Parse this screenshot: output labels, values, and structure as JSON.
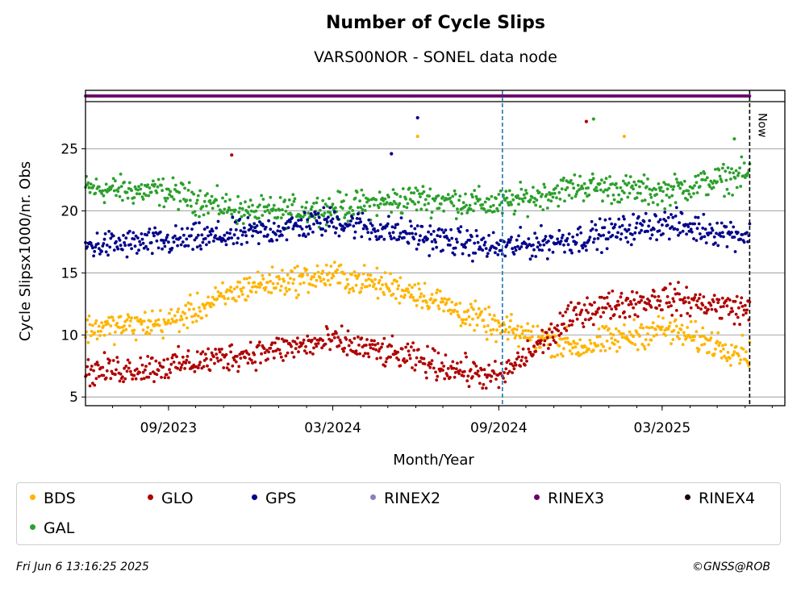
{
  "title": "Number of Cycle Slips",
  "subtitle": "VARS00NOR - SONEL data node",
  "footer": {
    "timestamp": "Fri Jun  6 13:16:25 2025",
    "copyright": "©GNSS@ROB"
  },
  "chart_data": {
    "type": "scatter",
    "xlabel": "Month/Year",
    "ylabel": "Cycle Slipsx1000/nr. Obs",
    "x_range": [
      "2023-06-01",
      "2025-07-15"
    ],
    "ylim": [
      4.3,
      28.8
    ],
    "yticks": [
      5,
      10,
      15,
      20,
      25
    ],
    "xticks": [
      {
        "date": "2023-09-01",
        "label": "09/2023"
      },
      {
        "date": "2024-03-01",
        "label": "03/2024"
      },
      {
        "date": "2024-09-01",
        "label": "09/2024"
      },
      {
        "date": "2025-03-01",
        "label": "03/2025"
      }
    ],
    "grid": "horizontal",
    "vertical_markers": [
      {
        "date": "2024-09-05",
        "style": "dashed",
        "color": "#1f77b4",
        "label": ""
      },
      {
        "date": "2025-06-06",
        "style": "dashed",
        "color": "#000000",
        "label": "Now"
      }
    ],
    "legend": {
      "placement": "bottom",
      "entries": [
        {
          "name": "BDS",
          "color": "#ffb400"
        },
        {
          "name": "GLO",
          "color": "#b00000"
        },
        {
          "name": "GPS",
          "color": "#00008b"
        },
        {
          "name": "RINEX2",
          "color": "#8c7fc0"
        },
        {
          "name": "RINEX3",
          "color": "#6a006a"
        },
        {
          "name": "RINEX4",
          "color": "#1a0010"
        },
        {
          "name": "GAL",
          "color": "#2ca02c"
        }
      ]
    },
    "rinex_band": {
      "series": "RINEX3",
      "from": "2023-06-01",
      "to": "2025-06-06"
    },
    "series": [
      {
        "name": "GAL",
        "color": "#2ca02c",
        "trend": [
          [
            "2023-06-01",
            21.8
          ],
          [
            "2023-09-01",
            21.5
          ],
          [
            "2023-12-01",
            19.8
          ],
          [
            "2024-03-01",
            20.2
          ],
          [
            "2024-06-01",
            21.0
          ],
          [
            "2024-09-01",
            20.5
          ],
          [
            "2024-12-01",
            22.0
          ],
          [
            "2025-03-01",
            21.5
          ],
          [
            "2025-06-06",
            23.0
          ]
        ]
      },
      {
        "name": "GPS",
        "color": "#00008b",
        "trend": [
          [
            "2023-06-01",
            17.2
          ],
          [
            "2023-09-01",
            17.5
          ],
          [
            "2023-12-01",
            18.2
          ],
          [
            "2024-03-01",
            19.2
          ],
          [
            "2024-06-01",
            18.0
          ],
          [
            "2024-09-01",
            17.0
          ],
          [
            "2024-12-01",
            17.8
          ],
          [
            "2025-03-01",
            19.0
          ],
          [
            "2025-06-06",
            18.0
          ]
        ]
      },
      {
        "name": "BDS",
        "color": "#ffb400",
        "trend": [
          [
            "2023-06-01",
            10.5
          ],
          [
            "2023-09-01",
            11.0
          ],
          [
            "2023-12-01",
            14.0
          ],
          [
            "2024-03-01",
            14.8
          ],
          [
            "2024-06-01",
            13.5
          ],
          [
            "2024-09-01",
            10.5
          ],
          [
            "2024-12-01",
            9.0
          ],
          [
            "2025-03-01",
            10.5
          ],
          [
            "2025-06-06",
            8.5
          ]
        ]
      },
      {
        "name": "GLO",
        "color": "#b00000",
        "trend": [
          [
            "2023-06-01",
            7.0
          ],
          [
            "2023-09-01",
            7.5
          ],
          [
            "2023-12-01",
            8.5
          ],
          [
            "2024-03-01",
            9.5
          ],
          [
            "2024-06-01",
            8.0
          ],
          [
            "2024-09-01",
            6.5
          ],
          [
            "2024-12-01",
            12.0
          ],
          [
            "2025-03-01",
            13.0
          ],
          [
            "2025-06-06",
            12.0
          ]
        ]
      }
    ],
    "outliers": [
      {
        "series": "GPS",
        "date": "2024-06-03",
        "y": 27.5
      },
      {
        "series": "BDS",
        "date": "2024-06-03",
        "y": 26.0
      },
      {
        "series": "GLO",
        "date": "2024-12-07",
        "y": 27.2
      },
      {
        "series": "GAL",
        "date": "2024-12-15",
        "y": 27.4
      },
      {
        "series": "BDS",
        "date": "2025-01-18",
        "y": 26.0
      },
      {
        "series": "GLO",
        "date": "2023-11-10",
        "y": 24.5
      },
      {
        "series": "GAL",
        "date": "2025-05-20",
        "y": 25.8
      },
      {
        "series": "GPS",
        "date": "2024-05-05",
        "y": 24.6
      }
    ]
  }
}
